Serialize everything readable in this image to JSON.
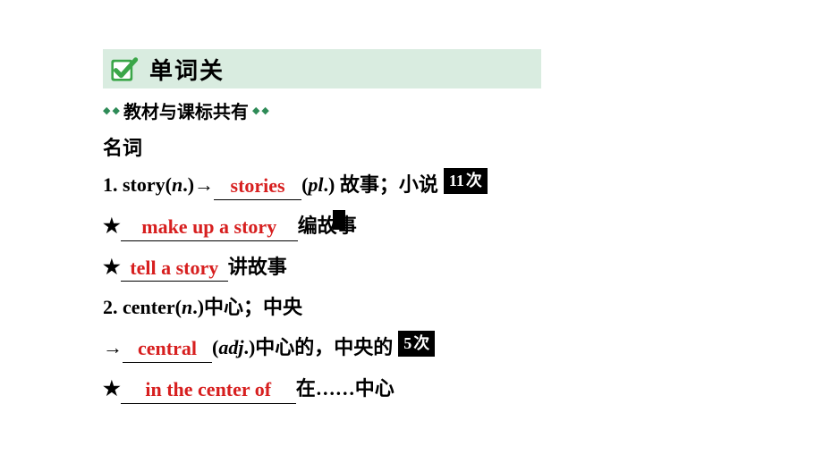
{
  "header": {
    "title": "单词关"
  },
  "subheader": {
    "text": "教材与课标共有"
  },
  "nounLabel": "名词",
  "items": [
    {
      "prefix": "1. story(",
      "italic1": "n",
      "mid1": ".)→",
      "blank": "stories",
      "blankWidth": 98,
      "after1": " (",
      "italic2": "pl",
      "after2": ".) 故事；小说",
      "badgeNum": "11",
      "badgeUnit": "次"
    }
  ],
  "phrases": [
    {
      "star": "★",
      "blank": "make up a story",
      "blankWidth": 198,
      "after": "  编故事"
    },
    {
      "star": "★",
      "blank": "tell a story",
      "blankWidth": 120,
      "after": "讲故事"
    }
  ],
  "item2": {
    "text": "2. center(",
    "italic": "n",
    "after": ".)中心；中央"
  },
  "item2b": {
    "arrow": "→",
    "blank": "central",
    "blankWidth": 100,
    "after1": " (",
    "italic": "adj",
    "after2": ".)中心的，中央的",
    "badgeNum": "5",
    "badgeUnit": "次"
  },
  "phrase3": {
    "star": "★",
    "blank": "in the center of",
    "blankWidth": 196,
    "after": "  在……中心"
  },
  "colors": {
    "answer": "#d71f1f",
    "headerBg": "#d9ece0",
    "checkGreen": "#3aa648",
    "checkWhite": "#ffffff"
  }
}
